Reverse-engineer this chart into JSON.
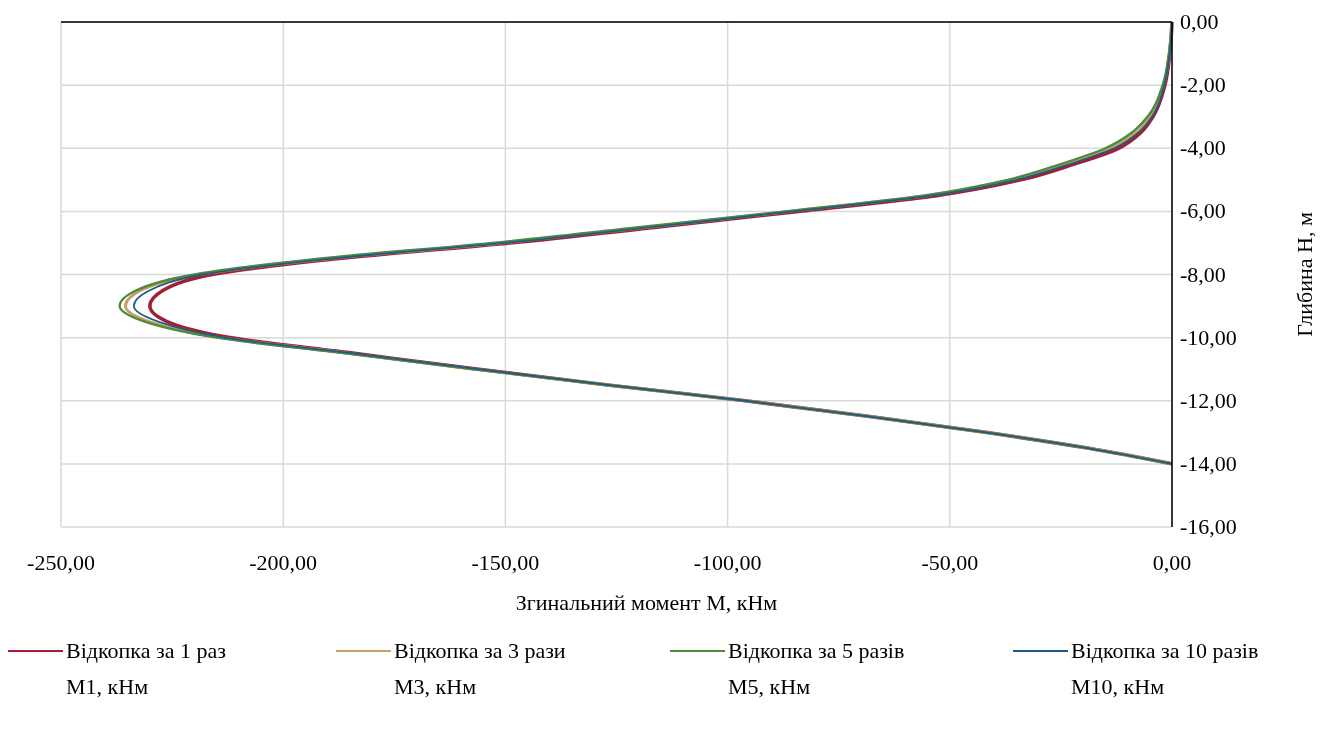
{
  "chart_data": {
    "type": "line",
    "xlabel": "Згинальний момент М, кНм",
    "ylabel": "Глибина Н, м",
    "xlim": [
      -250,
      0
    ],
    "xticks": [
      {
        "value": -250,
        "label": "-250,00"
      },
      {
        "value": -200,
        "label": "-200,00"
      },
      {
        "value": -150,
        "label": "-150,00"
      },
      {
        "value": -100,
        "label": "-100,00"
      },
      {
        "value": -50,
        "label": "-50,00"
      },
      {
        "value": 0,
        "label": "0,00"
      }
    ],
    "ylim": [
      -16,
      0
    ],
    "yticks": [
      {
        "value": 0,
        "label": "0,00"
      },
      {
        "value": -2,
        "label": "-2,00"
      },
      {
        "value": -4,
        "label": "-4,00"
      },
      {
        "value": -6,
        "label": "-6,00"
      },
      {
        "value": -8,
        "label": "-8,00"
      },
      {
        "value": -10,
        "label": "-10,00"
      },
      {
        "value": -12,
        "label": "-12,00"
      },
      {
        "value": -14,
        "label": "-14,00"
      },
      {
        "value": -16,
        "label": "-16,00"
      }
    ],
    "grid": true,
    "legend": "bottom",
    "marker": "none",
    "line_style": "solid",
    "series": [
      {
        "name": "Відкопка за 1 раз М1, кНм",
        "color": "#a31f34",
        "x": [
          0,
          -0.5,
          -1.6,
          -4.3,
          -7,
          -12,
          -22,
          -34,
          -53,
          -84,
          -116,
          -149,
          -188,
          -216,
          -227,
          -230,
          -226,
          -212,
          -184,
          -156,
          -127,
          -96,
          -68,
          -42,
          -19,
          0
        ],
        "values": [
          0,
          -1,
          -2,
          -3,
          -3.5,
          -4,
          -4.5,
          -5,
          -5.5,
          -6,
          -6.5,
          -7,
          -7.5,
          -8,
          -8.5,
          -9,
          -9.5,
          -10,
          -10.5,
          -11,
          -11.5,
          -12,
          -12.5,
          -13,
          -13.5,
          -14
        ]
      },
      {
        "name": "Відкопка за 3 рази М3, кНм",
        "color": "#c9a063",
        "x": [
          0,
          -0.6,
          -1.9,
          -5,
          -8,
          -14,
          -24,
          -36,
          -55,
          -86,
          -118,
          -151,
          -190,
          -219,
          -232,
          -235.5,
          -230,
          -214,
          -185,
          -157,
          -127,
          -96,
          -68,
          -42,
          -19,
          0
        ],
        "values": [
          0,
          -1,
          -2,
          -3,
          -3.5,
          -4,
          -4.5,
          -5,
          -5.5,
          -6,
          -6.5,
          -7,
          -7.5,
          -8,
          -8.5,
          -9,
          -9.5,
          -10,
          -10.5,
          -11,
          -11.5,
          -12,
          -12.5,
          -13,
          -13.5,
          -14
        ]
      },
      {
        "name": "Відкопка за 5 разів М5, кНм",
        "color": "#4e8a3c",
        "x": [
          0,
          -0.7,
          -2.1,
          -5.5,
          -9,
          -15,
          -25,
          -37,
          -56,
          -87,
          -120,
          -153,
          -192,
          -220,
          -233,
          -236.8,
          -231,
          -215,
          -186,
          -157,
          -127,
          -96,
          -68,
          -42,
          -19,
          0
        ],
        "values": [
          0,
          -1,
          -2,
          -3,
          -3.5,
          -4,
          -4.5,
          -5,
          -5.5,
          -6,
          -6.5,
          -7,
          -7.5,
          -8,
          -8.5,
          -9,
          -9.5,
          -10,
          -10.5,
          -11,
          -11.5,
          -12,
          -12.5,
          -13,
          -13.5,
          -14
        ]
      },
      {
        "name": "Відкопка за 10 разів М10, кНм",
        "color": "#1f5b87",
        "x": [
          0,
          -0.5,
          -1.7,
          -4.5,
          -7.5,
          -13,
          -23,
          -35,
          -54,
          -85,
          -117,
          -150,
          -189,
          -218,
          -230,
          -233.6,
          -228,
          -213,
          -184,
          -156,
          -127,
          -96,
          -68,
          -42,
          -19,
          0
        ],
        "values": [
          0,
          -1,
          -2,
          -3,
          -3.5,
          -4,
          -4.5,
          -5,
          -5.5,
          -6,
          -6.5,
          -7,
          -7.5,
          -8,
          -8.5,
          -9,
          -9.5,
          -10,
          -10.5,
          -11,
          -11.5,
          -12,
          -12.5,
          -13,
          -13.5,
          -14
        ]
      }
    ]
  }
}
